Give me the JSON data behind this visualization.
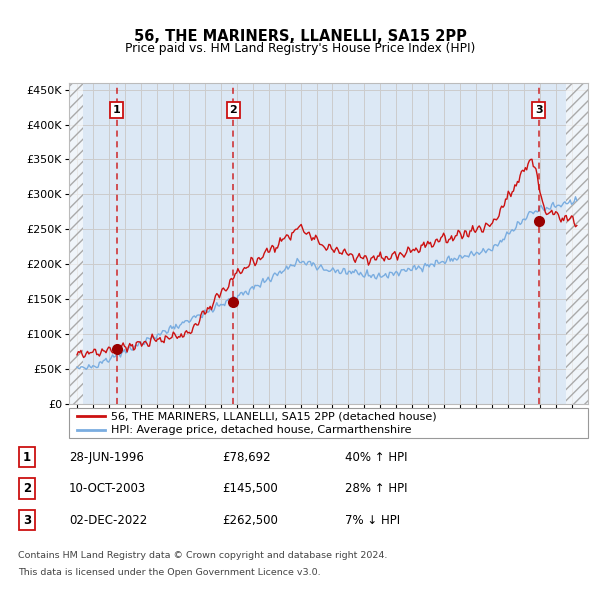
{
  "title": "56, THE MARINERS, LLANELLI, SA15 2PP",
  "subtitle": "Price paid vs. HM Land Registry's House Price Index (HPI)",
  "legend_entry1": "56, THE MARINERS, LLANELLI, SA15 2PP (detached house)",
  "legend_entry2": "HPI: Average price, detached house, Carmarthenshire",
  "footer1": "Contains HM Land Registry data © Crown copyright and database right 2024.",
  "footer2": "This data is licensed under the Open Government Licence v3.0.",
  "sale_dates": [
    1996.49,
    2003.78,
    2022.92
  ],
  "sale_prices": [
    78692,
    145500,
    262500
  ],
  "sale_labels": [
    "1",
    "2",
    "3"
  ],
  "table_rows": [
    [
      "1",
      "28-JUN-1996",
      "£78,692",
      "40% ↑ HPI"
    ],
    [
      "2",
      "10-OCT-2003",
      "£145,500",
      "28% ↑ HPI"
    ],
    [
      "3",
      "02-DEC-2022",
      "£262,500",
      "7% ↓ HPI"
    ]
  ],
  "hpi_line_color": "#7aade0",
  "price_line_color": "#cc1111",
  "sale_marker_color": "#990000",
  "dashed_line_color": "#cc1111",
  "ylim": [
    0,
    460000
  ],
  "yticks": [
    0,
    50000,
    100000,
    150000,
    200000,
    250000,
    300000,
    350000,
    400000,
    450000
  ],
  "xlim_start": 1993.5,
  "xlim_end": 2026.0,
  "hatch_end": 1994.4,
  "hatch_start_right": 2024.6,
  "grid_color": "#cccccc",
  "bg_color": "#dce8f5",
  "hatch_color": "#aaaaaa",
  "white_hatch_bg": "#f0f0f0"
}
